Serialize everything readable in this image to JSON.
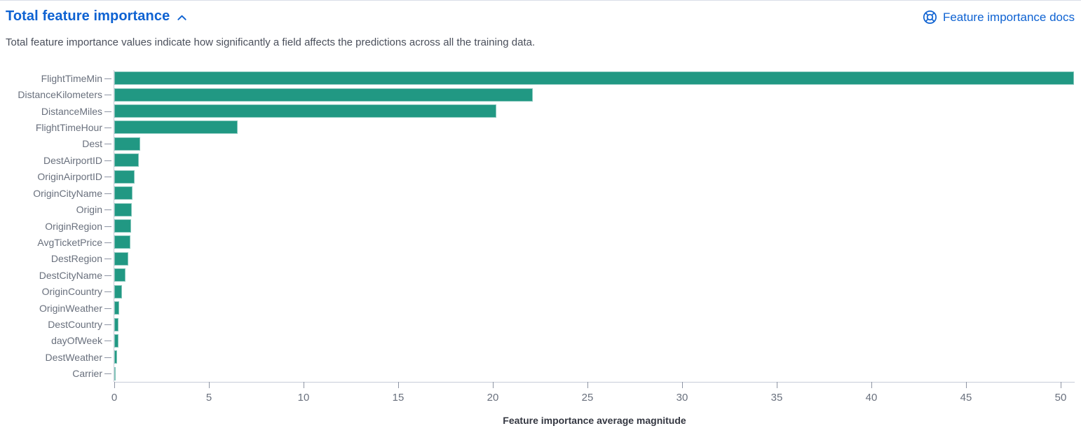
{
  "panel": {
    "title": "Total feature importance",
    "collapse_icon": "chevron-up-icon",
    "docs_link_label": "Feature importance docs",
    "docs_link_icon": "help-icon",
    "description": "Total feature importance values indicate how significantly a field affects the predictions across all the training data.",
    "accent_color": "#0e62d2"
  },
  "chart_data": {
    "type": "bar",
    "orientation": "horizontal",
    "title": "",
    "xlabel": "Feature importance average magnitude",
    "ylabel": "",
    "categories": [
      "FlightTimeMin",
      "DistanceKilometers",
      "DistanceMiles",
      "FlightTimeHour",
      "Dest",
      "DestAirportID",
      "OriginAirportID",
      "OriginCityName",
      "Origin",
      "OriginRegion",
      "AvgTicketPrice",
      "DestRegion",
      "DestCityName",
      "OriginCountry",
      "OriginWeather",
      "DestCountry",
      "dayOfWeek",
      "DestWeather",
      "Carrier"
    ],
    "values": [
      50.7,
      22.1,
      20.2,
      6.5,
      1.37,
      1.3,
      1.08,
      0.98,
      0.94,
      0.88,
      0.84,
      0.73,
      0.6,
      0.4,
      0.26,
      0.23,
      0.22,
      0.15,
      0.04
    ],
    "xlim": [
      0,
      50.74
    ],
    "xticks": [
      0,
      5,
      10,
      15,
      20,
      25,
      30,
      35,
      40,
      45,
      50
    ],
    "bar_color": "#219883",
    "grid": false,
    "legend": false,
    "label_color": "#69707d",
    "axis_line_color": "#c8cdd8"
  }
}
